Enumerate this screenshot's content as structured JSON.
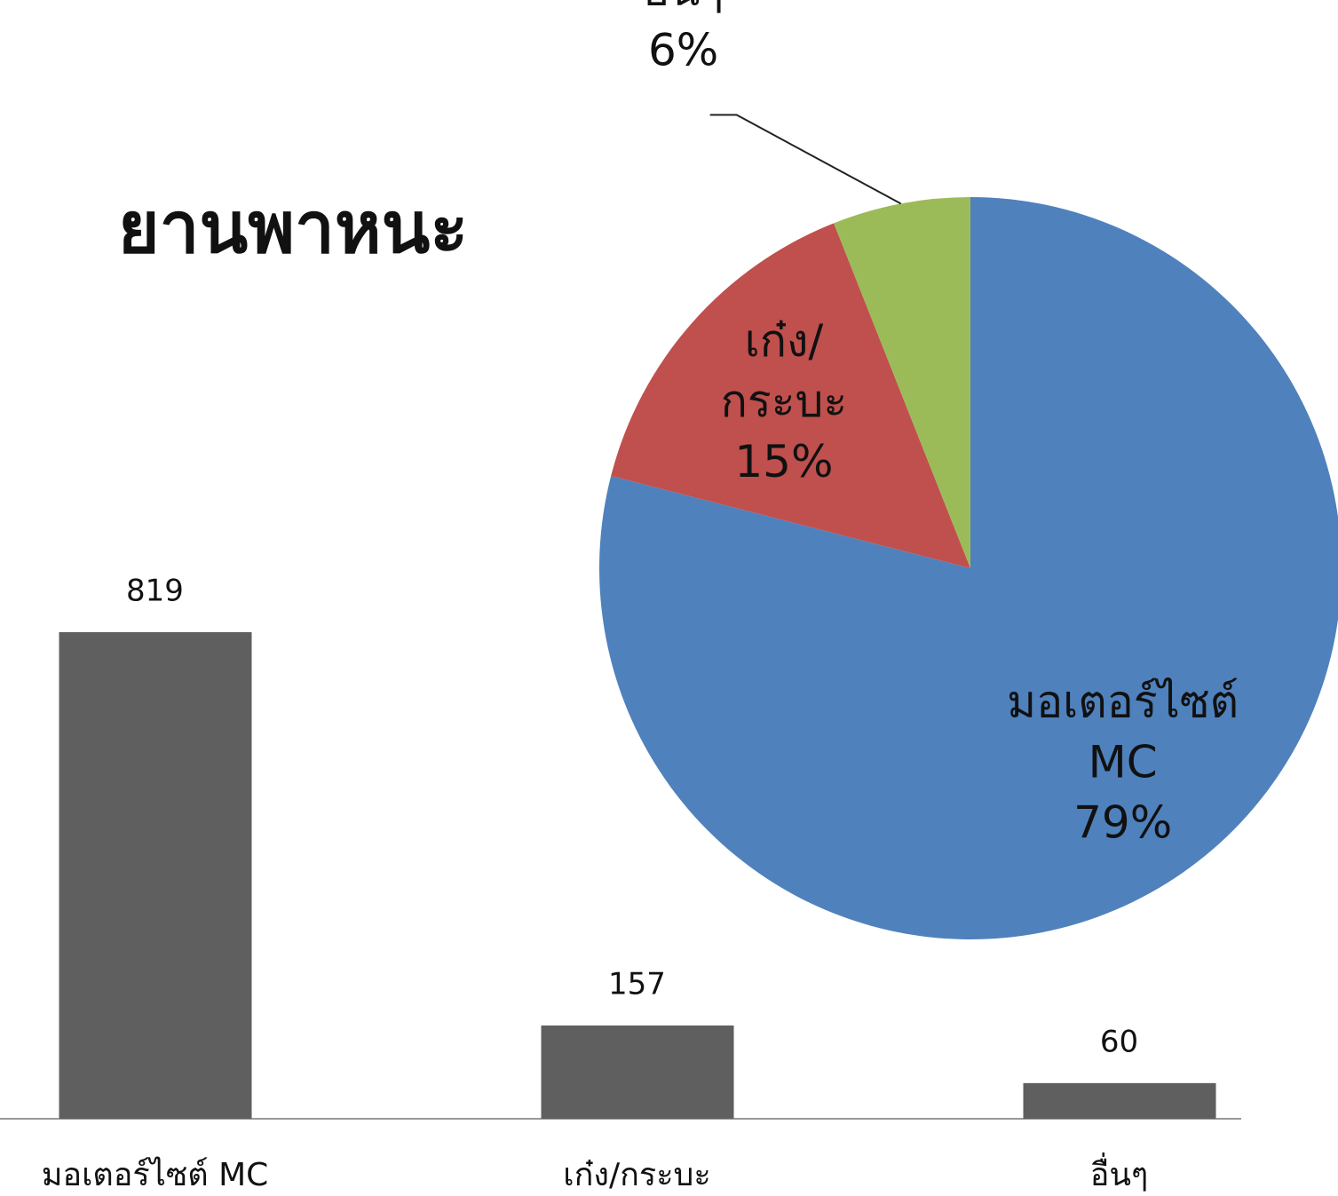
{
  "chart_data": [
    {
      "type": "bar",
      "title": "ยานพาหนะ",
      "categories": [
        "มอเตอร์ไซต์ MC",
        "เก๋ง/กระบะ",
        "อื่นๆ"
      ],
      "values": [
        819,
        157,
        60
      ],
      "color": "#5f5f5f",
      "title_color": "#d0343c"
    },
    {
      "type": "pie",
      "categories": [
        "มอเตอร์ไซต์ MC",
        "เก๋ง/กระบะ",
        "อื่นๆ"
      ],
      "values": [
        79,
        15,
        6
      ],
      "value_labels": [
        "79%",
        "15%",
        "6%"
      ],
      "colors": [
        "#4f81bd",
        "#c0504d",
        "#9bbb59"
      ]
    }
  ]
}
